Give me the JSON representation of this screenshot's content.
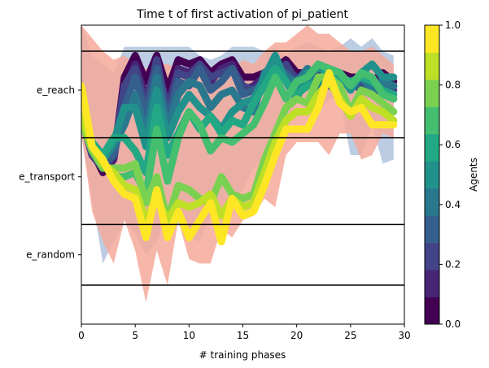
{
  "chart_data": {
    "type": "line",
    "title": "Time t of first activation of pi_patient",
    "xlabel": "# training phases",
    "ylabel": "",
    "xlim": [
      0,
      30
    ],
    "ylim": [
      -3.4,
      3.5
    ],
    "x_ticks": [
      0,
      5,
      10,
      15,
      20,
      25,
      30
    ],
    "y_categories": [
      {
        "label": "e_reach",
        "value": 2
      },
      {
        "label": "e_transport",
        "value": 0
      },
      {
        "label": "e_random",
        "value": -1.8
      }
    ],
    "boundaries": [
      2.9,
      0.9,
      -1.1,
      -2.5
    ],
    "colorbar": {
      "label": "Agents",
      "range": [
        0,
        1
      ],
      "ticks": [
        0.0,
        0.2,
        0.4,
        0.6,
        0.8,
        1.0
      ],
      "levels": 10,
      "colors": [
        "#440154",
        "#482475",
        "#414487",
        "#355f8d",
        "#2a788e",
        "#21918c",
        "#22a884",
        "#44bf70",
        "#7ad151",
        "#bddf26",
        "#fde725"
      ]
    },
    "bands": [
      {
        "color": "#b0c4de",
        "upper": [
          3.5,
          2.8,
          2.6,
          2.4,
          3.0,
          3.0,
          3.0,
          3.0,
          3.0,
          3.0,
          3.0,
          2.8,
          2.7,
          2.8,
          3.0,
          3.0,
          3.0,
          2.9,
          3.0,
          2.8,
          3.0,
          3.1,
          3.0,
          2.9,
          3.0,
          3.2,
          3.0,
          3.2,
          2.9,
          2.8
        ],
        "lower": [
          1.0,
          -0.5,
          -2.0,
          -1.5,
          -1.0,
          -1.3,
          -1.8,
          -1.5,
          -0.8,
          -1.1,
          -1.4,
          -1.5,
          -0.9,
          -1.0,
          -0.6,
          -0.3,
          0.2,
          0.5,
          0.5,
          1.0,
          1.8,
          1.5,
          1.5,
          1.8,
          1.8,
          0.5,
          0.5,
          1.2,
          0.3,
          0.4
        ]
      },
      {
        "color": "#f4a99a",
        "upper": [
          3.5,
          3.2,
          2.9,
          2.7,
          2.8,
          2.6,
          2.5,
          2.6,
          2.6,
          2.5,
          2.4,
          2.6,
          2.3,
          2.4,
          2.5,
          2.7,
          2.6,
          2.9,
          3.1,
          3.1,
          3.3,
          3.5,
          3.3,
          3.3,
          3.1,
          2.9,
          2.9,
          3.0,
          2.8,
          2.6
        ],
        "lower": [
          1.0,
          -0.8,
          -1.5,
          -2.0,
          -1.0,
          -1.7,
          -2.9,
          -1.7,
          -2.5,
          -1.0,
          -1.9,
          -2.0,
          -2.0,
          -1.2,
          -1.4,
          -1.0,
          -0.9,
          -0.5,
          -0.7,
          0.5,
          0.8,
          0.8,
          0.8,
          0.5,
          1.0,
          1.0,
          0.4,
          0.5,
          1.0,
          0.9
        ]
      }
    ],
    "series": [
      {
        "agent": 0.0,
        "values": [
          1.4,
          0.6,
          0.1,
          0.4,
          2.3,
          2.8,
          2.2,
          2.8,
          2.0,
          2.7,
          2.6,
          2.7,
          2.4,
          2.6,
          2.7,
          2.3,
          2.3,
          2.4,
          2.5,
          2.7,
          2.4,
          2.4,
          2.5,
          2.3,
          2.4,
          2.3,
          2.3,
          2.2,
          2.4,
          2.2
        ]
      },
      {
        "agent": 0.1,
        "values": [
          1.4,
          0.5,
          0.2,
          0.4,
          2.0,
          2.6,
          1.8,
          2.6,
          1.6,
          2.5,
          2.4,
          2.6,
          2.2,
          2.5,
          2.6,
          2.0,
          2.1,
          2.3,
          2.4,
          2.5,
          2.3,
          2.2,
          2.3,
          2.1,
          2.2,
          2.2,
          2.1,
          2.0,
          2.2,
          2.1
        ]
      },
      {
        "agent": 0.2,
        "values": [
          1.4,
          0.5,
          0.2,
          0.5,
          2.1,
          2.5,
          1.6,
          2.7,
          1.5,
          2.4,
          2.3,
          2.6,
          2.3,
          2.4,
          2.5,
          2.1,
          2.0,
          2.2,
          2.3,
          2.6,
          2.2,
          2.1,
          2.4,
          2.2,
          2.3,
          2.1,
          2.2,
          1.9,
          2.3,
          2.0
        ]
      },
      {
        "agent": 0.3,
        "values": [
          1.4,
          0.6,
          0.3,
          0.5,
          1.6,
          2.3,
          1.4,
          2.5,
          1.3,
          2.2,
          2.1,
          2.5,
          2.0,
          2.2,
          2.5,
          1.9,
          2.0,
          2.1,
          2.5,
          2.4,
          2.1,
          2.2,
          2.3,
          2.3,
          2.2,
          2.2,
          2.0,
          1.9,
          2.1,
          1.8
        ]
      },
      {
        "agent": 0.4,
        "values": [
          1.3,
          0.6,
          0.4,
          0.7,
          1.2,
          1.9,
          1.0,
          2.3,
          1.1,
          1.9,
          2.2,
          2.1,
          1.6,
          1.9,
          2.0,
          1.6,
          1.5,
          2.4,
          2.6,
          2.3,
          2.2,
          2.5,
          2.0,
          2.4,
          2.2,
          2.1,
          2.3,
          2.0,
          2.2,
          2.1
        ]
      },
      {
        "agent": 0.5,
        "values": [
          1.3,
          0.7,
          0.4,
          0.8,
          1.6,
          1.6,
          0.7,
          2.0,
          0.9,
          1.5,
          1.9,
          1.6,
          1.4,
          1.1,
          1.5,
          1.7,
          1.8,
          2.3,
          2.8,
          2.2,
          1.8,
          2.4,
          2.5,
          2.5,
          2.4,
          2.0,
          2.4,
          2.6,
          2.3,
          2.3
        ]
      },
      {
        "agent": 0.6,
        "values": [
          1.3,
          0.8,
          0.5,
          0.9,
          0.9,
          0.6,
          0.1,
          1.6,
          0.5,
          1.0,
          1.5,
          1.1,
          1.4,
          1.0,
          1.3,
          1.2,
          1.7,
          2.1,
          2.5,
          2.2,
          1.9,
          2.1,
          2.2,
          2.5,
          2.3,
          2.2,
          2.3,
          2.2,
          2.0,
          1.9
        ]
      },
      {
        "agent": 0.7,
        "values": [
          1.3,
          0.6,
          0.3,
          0.0,
          0.0,
          0.1,
          -0.4,
          1.1,
          -0.1,
          0.9,
          1.5,
          1.2,
          0.6,
          0.9,
          0.8,
          1.0,
          1.2,
          1.7,
          2.3,
          1.8,
          2.2,
          2.3,
          2.6,
          2.5,
          2.4,
          2.1,
          2.4,
          2.3,
          1.9,
          1.8
        ]
      },
      {
        "agent": 0.8,
        "values": [
          1.3,
          0.6,
          0.2,
          0.2,
          0.2,
          0.3,
          -0.6,
          0.0,
          -1.0,
          -0.2,
          -0.3,
          -0.5,
          -0.6,
          0.0,
          -0.4,
          -0.5,
          -0.4,
          0.4,
          1.0,
          1.6,
          1.8,
          1.7,
          2.3,
          2.3,
          2.1,
          1.5,
          2.0,
          1.9,
          1.7,
          1.5
        ]
      },
      {
        "agent": 0.9,
        "values": [
          1.4,
          0.7,
          0.3,
          0.1,
          -0.2,
          -0.3,
          -1.0,
          -0.5,
          -1.0,
          -0.6,
          -0.7,
          -0.6,
          -0.4,
          -0.9,
          -0.5,
          -0.7,
          -0.6,
          0.1,
          0.8,
          1.3,
          1.5,
          1.5,
          1.9,
          2.2,
          1.8,
          1.4,
          1.8,
          1.6,
          1.5,
          1.3
        ]
      },
      {
        "agent": 1.0,
        "values": [
          2.1,
          0.7,
          0.4,
          -0.1,
          -0.4,
          -0.5,
          -1.4,
          -0.3,
          -1.4,
          -0.8,
          -1.4,
          -1.0,
          -0.6,
          -1.5,
          -0.5,
          -0.9,
          -0.8,
          -0.2,
          0.5,
          1.1,
          1.1,
          1.1,
          1.6,
          2.4,
          1.7,
          1.5,
          1.6,
          1.2,
          1.2,
          1.2
        ]
      }
    ]
  }
}
